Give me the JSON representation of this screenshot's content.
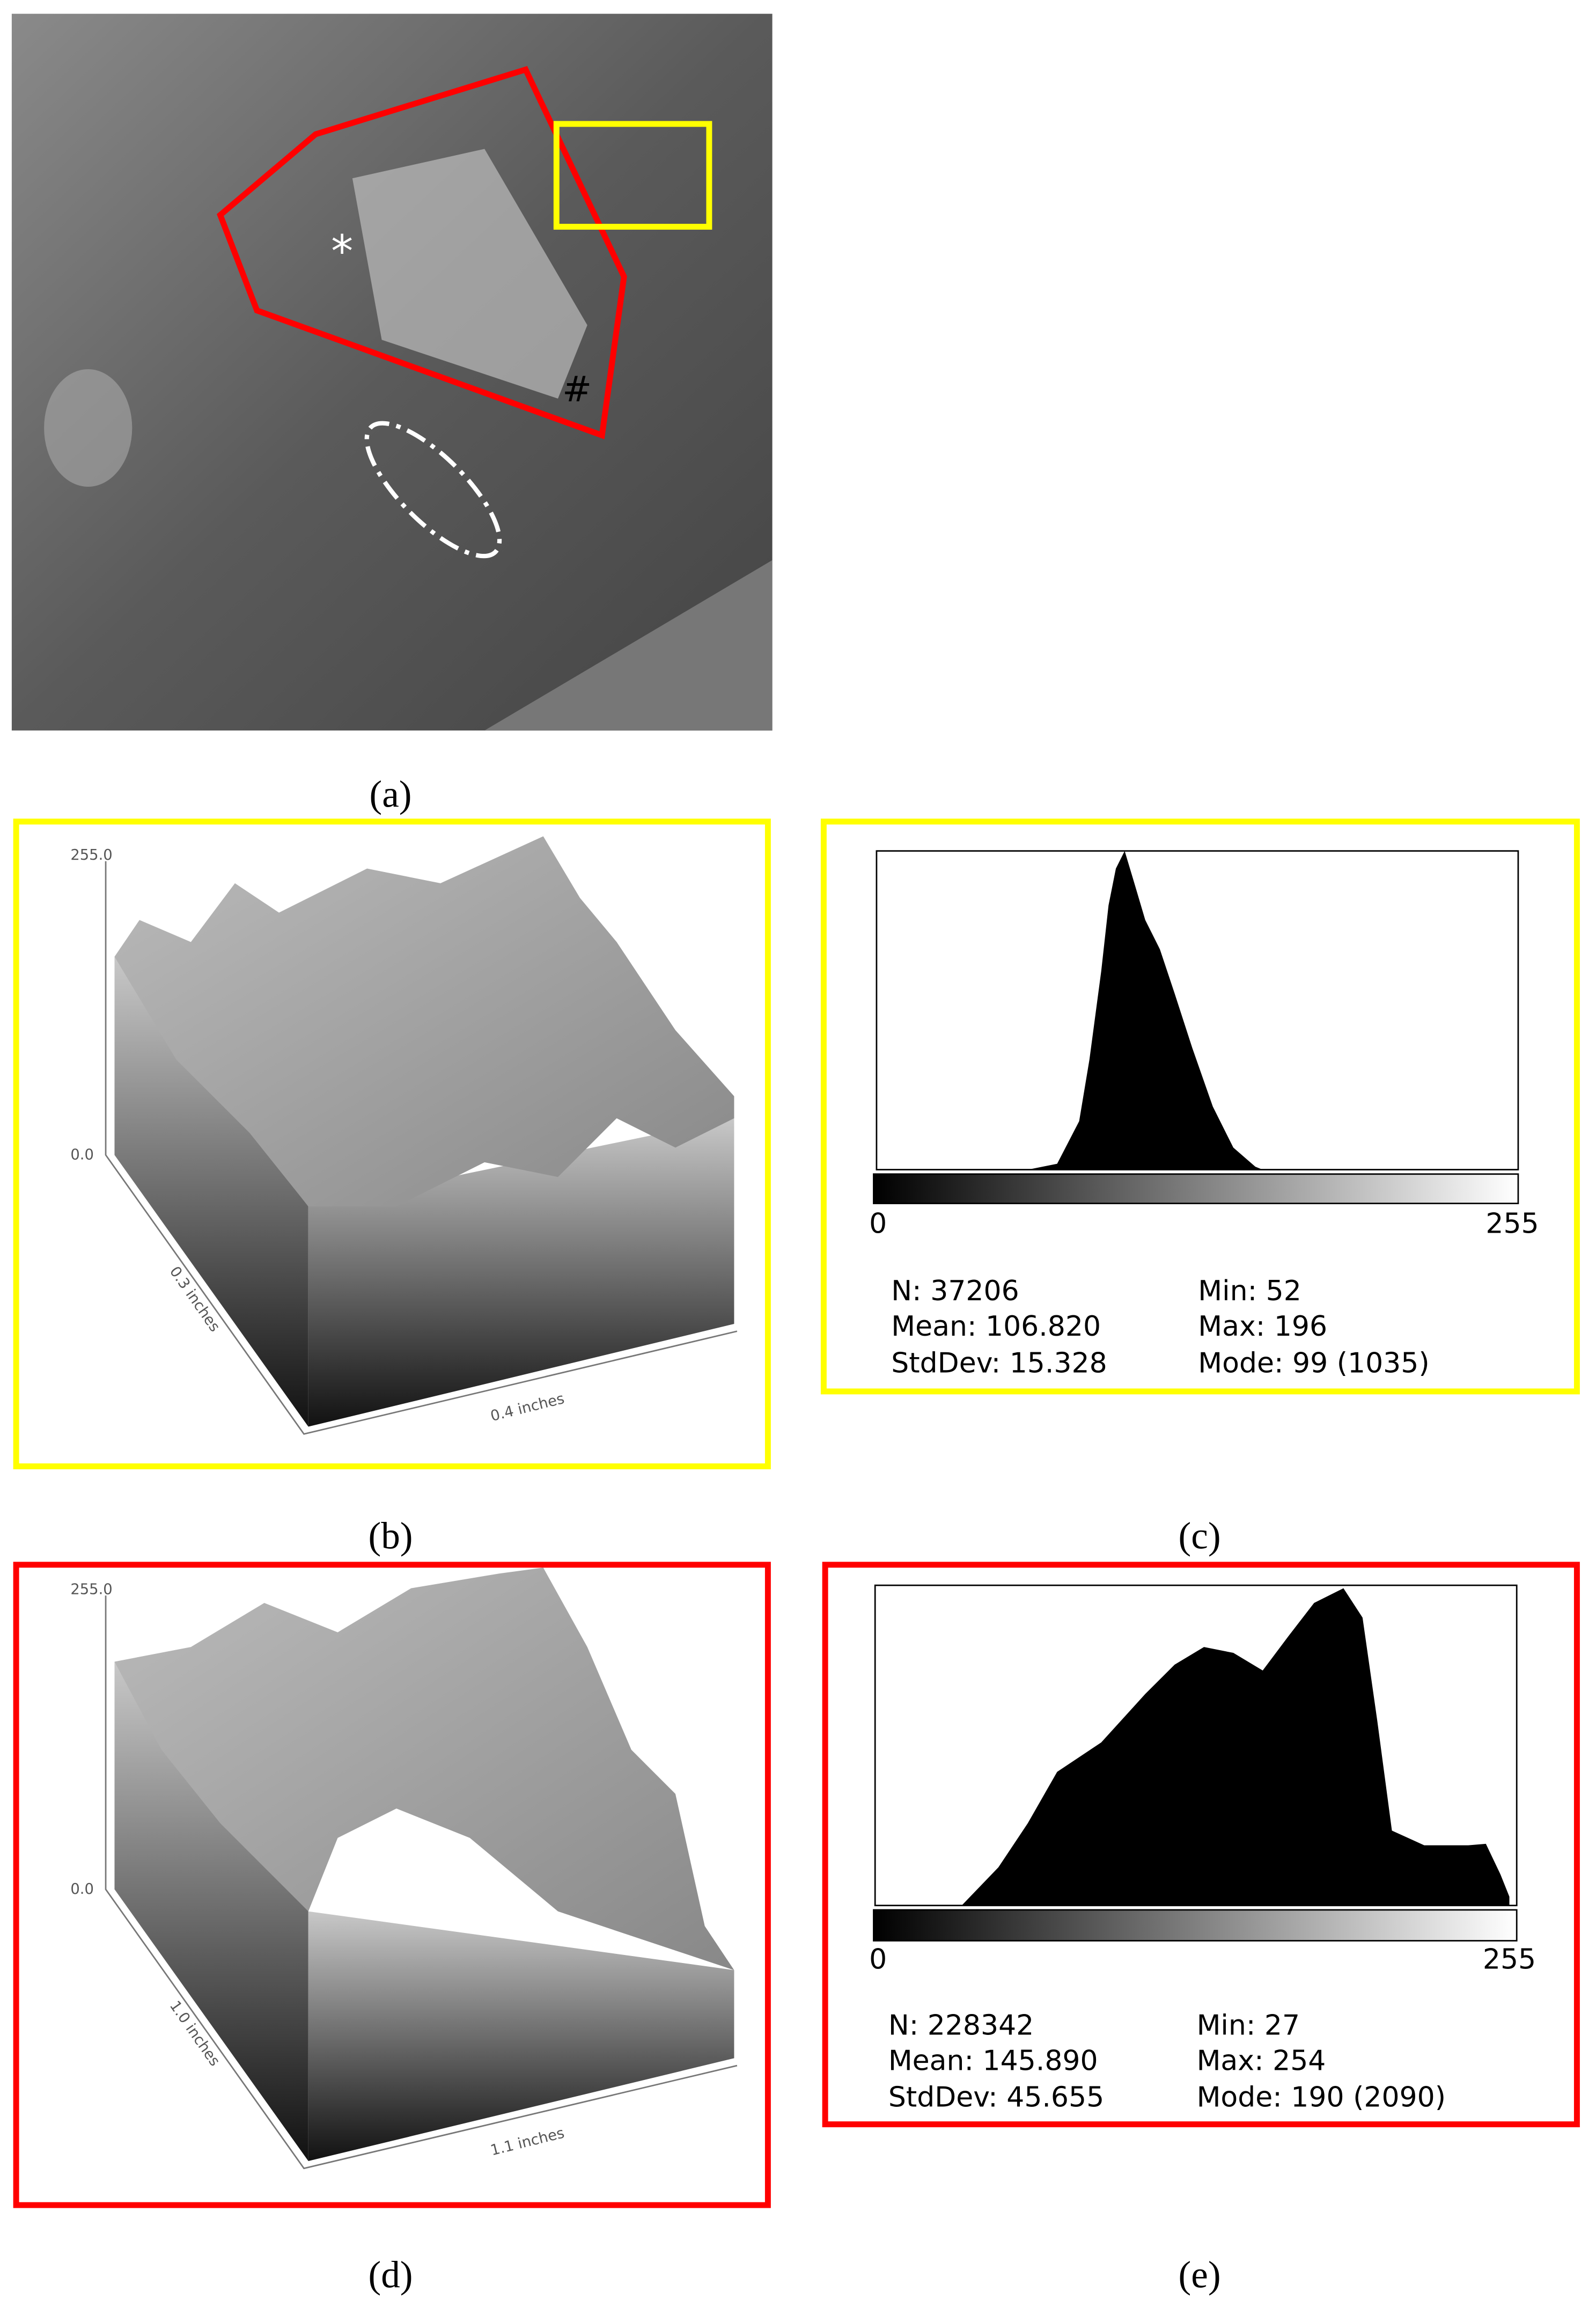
{
  "panels": {
    "a": {
      "label": "(a)",
      "marks": [
        "*",
        "#"
      ]
    },
    "b": {
      "label": "(b)",
      "z_max": "255.0",
      "z_min": "0.0",
      "depth_axis": "0.3 inches",
      "width_axis": "0.4 inches"
    },
    "c": {
      "label": "(c)",
      "axis_min": "0",
      "axis_max": "255",
      "stats": [
        [
          "N: 37206",
          "Min: 52"
        ],
        [
          "Mean: 106.820",
          "Max: 196"
        ],
        [
          "StdDev: 15.328",
          "Mode: 99 (1035)"
        ]
      ]
    },
    "d": {
      "label": "(d)",
      "z_max": "255.0",
      "z_min": "0.0",
      "depth_axis": "1.0 inches",
      "width_axis": "1.1 inches"
    },
    "e": {
      "label": "(e)",
      "axis_min": "0",
      "axis_max": "255",
      "stats": [
        [
          "N: 228342",
          "Min: 27"
        ],
        [
          "Mean: 145.890",
          "Max: 254"
        ],
        [
          "StdDev: 45.655",
          "Mode: 190 (2090)"
        ]
      ]
    }
  }
}
